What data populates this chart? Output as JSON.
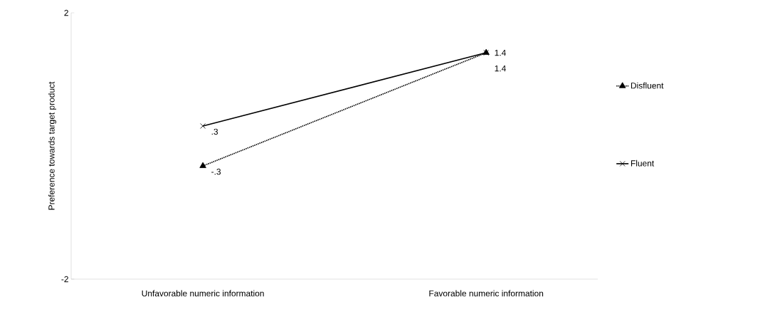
{
  "chart_data": {
    "type": "line",
    "ylabel": "Preference towards target product",
    "categories": [
      "Unfavorable numeric information",
      "Favorable numeric information"
    ],
    "series": [
      {
        "name": "Disfluent",
        "color": "#000000",
        "values": [
          -0.3,
          1.4
        ],
        "value_labels": [
          "-.3",
          "1.4"
        ],
        "marker": "triangle",
        "line_style": "dotted"
      },
      {
        "name": "Fluent",
        "color": "#000000",
        "values": [
          0.3,
          1.4
        ],
        "value_labels": [
          ".3",
          "1.4"
        ],
        "marker": "cross",
        "line_style": "solid"
      }
    ],
    "ylim": [
      -2,
      2
    ],
    "yticks": [
      -2,
      2
    ],
    "grid": false,
    "legend": "right"
  }
}
